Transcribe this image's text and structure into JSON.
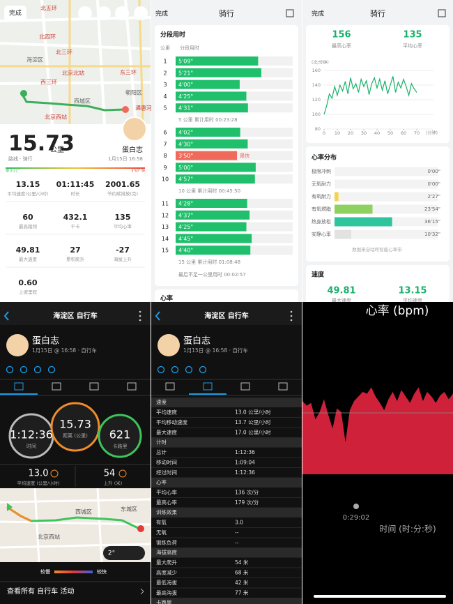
{
  "screen1": {
    "done": "完成",
    "map_labels": [
      "北五环",
      "北四环",
      "北三环",
      "海淀区",
      "北京北站",
      "西三环",
      "东三环",
      "朝阳区",
      "西城区",
      "北京西站",
      "通惠河"
    ],
    "distance": "15.73",
    "distance_unit": "公里",
    "user": "蛋白志",
    "activity": "路线 · 骑行",
    "date": "1月15日 16:58",
    "pace_slow": "慢 5'21\"",
    "pace_fast": "3'50\" 快",
    "stats": [
      {
        "value": "13.15",
        "label": "平均速度(公里/小时)"
      },
      {
        "value": "01:11:45",
        "label": "时长"
      },
      {
        "value": "2001.65",
        "label": "节约碳排放(克)"
      },
      {
        "value": "60",
        "label": "最高踏频"
      },
      {
        "value": "432.1",
        "label": "千卡"
      },
      {
        "value": "135",
        "label": "平均心率"
      },
      {
        "value": "49.81",
        "label": "最大速度"
      },
      {
        "value": "27",
        "label": "累积爬升"
      },
      {
        "value": "-27",
        "label": "海拔上升"
      },
      {
        "value": "0.60",
        "label": "上坡里程"
      }
    ]
  },
  "screen2": {
    "done": "完成",
    "title": "骑行",
    "splits": {
      "title": "分段用时",
      "col_km": "公里",
      "col_time": "分段用时",
      "km": [
        1,
        2,
        3,
        4,
        5,
        6,
        7,
        8,
        9,
        10,
        11,
        12,
        13,
        14,
        15
      ],
      "values": [
        309,
        321,
        240,
        265,
        271,
        242,
        270,
        230,
        300,
        297,
        268,
        277,
        265,
        285,
        280
      ],
      "value_labels": [
        "5'09\"",
        "5'21\"",
        "4'00\"",
        "4'25\"",
        "4'31\"",
        "4'02\"",
        "4'30\"",
        "3'50\"",
        "5'00\"",
        "4'57\"",
        "4'28\"",
        "4'37\"",
        "4'25\"",
        "4'45\"",
        "4'40\""
      ],
      "color": "#1fbf6c",
      "fastest_color": "#f06a5b",
      "fastest": "最快",
      "subtotals": [
        "5 公里 累计用时 00:23:28",
        "10 公里 累计用时 00:45:50",
        "15 公里 累计用时 01:08:48"
      ],
      "last": "最后不足一公里用时 00:02:57"
    },
    "next": "心率"
  },
  "screen3": {
    "done": "完成",
    "title": "骑行",
    "max_hr": "156",
    "max_hr_label": "最高心率",
    "avg_hr": "135",
    "avg_hr_label": "平均心率",
    "chart": {
      "type": "line",
      "y_label": "(次/分钟)",
      "x_label": "(分钟)",
      "x": [
        0,
        2,
        4,
        6,
        8,
        10,
        12,
        14,
        16,
        18,
        20,
        22,
        24,
        26,
        28,
        30,
        32,
        34,
        36,
        38,
        40,
        42,
        44,
        46,
        48,
        50,
        52,
        54,
        56,
        58,
        60,
        62,
        64,
        66,
        68,
        70
      ],
      "values": [
        100,
        112,
        128,
        122,
        138,
        126,
        140,
        132,
        145,
        128,
        150,
        135,
        142,
        130,
        148,
        138,
        146,
        127,
        142,
        150,
        136,
        148,
        133,
        146,
        128,
        140,
        152,
        130,
        144,
        136,
        148,
        138,
        126,
        142,
        135,
        130
      ],
      "color": "#17b26a",
      "xlim": [
        0,
        70
      ],
      "ylim": [
        80,
        160
      ],
      "xticks": [
        0,
        10,
        20,
        30,
        40,
        50,
        60,
        70
      ],
      "yticks": [
        80,
        100,
        120,
        140,
        160
      ],
      "grid": true
    },
    "zones": {
      "title": "心率分布",
      "names": [
        "极限冲刺",
        "无氧耐力",
        "有氧耐力",
        "有氧燃脂",
        "热身放松",
        "安静心率"
      ],
      "values": [
        0,
        0,
        147,
        1434,
        2175,
        632
      ],
      "value_labels": [
        "0'00\"",
        "0'00\"",
        "2'27\"",
        "23'54\"",
        "36'15\"",
        "10'32\""
      ],
      "colors": [
        "#e85b4f",
        "#f29c38",
        "#f5d24c",
        "#8ed160",
        "#2ec49c",
        "#e2e2e2"
      ],
      "note": "数据来自咕咚智能心率带"
    },
    "speed_title": "速度",
    "max_speed": "49.81",
    "max_speed_label": "最大速度",
    "avg_speed": "13.15",
    "avg_speed_label": "平均速度"
  },
  "screen4": {
    "header": "海淀区 自行车",
    "user": "蛋白志",
    "meta": "1月15日 @ 16:58 · 自行车",
    "time": "1:12:36",
    "time_label": "时间",
    "distance": "15.73",
    "distance_label": "距离 (公里)",
    "calories": "621",
    "calories_label": "卡路里",
    "avg_speed": "13.0",
    "avg_speed_label": "平均速度 (公里/小时)",
    "ascent": "54",
    "ascent_label": "上升 (米)",
    "map_labels": [
      "西城区",
      "东城区",
      "北京西站"
    ],
    "temp": "2°",
    "slow": "较慢",
    "fast": "较快",
    "link": "查看所有 自行车 活动"
  },
  "screen5": {
    "header": "海淀区 自行车",
    "user": "蛋白志",
    "meta": "1月15日 @ 16:58 · 自行车",
    "sections": [
      {
        "title": "速度",
        "rows": [
          [
            "平均速度",
            "13.0 公里/小时"
          ],
          [
            "平均移动速度",
            "13.7 公里/小时"
          ],
          [
            "最大速度",
            "17.0 公里/小时"
          ]
        ]
      },
      {
        "title": "计时",
        "rows": [
          [
            "总计",
            "1:12:36"
          ],
          [
            "移动时间",
            "1:09:04"
          ],
          [
            "经过时间",
            "1:12:36"
          ]
        ]
      },
      {
        "title": "心率",
        "rows": [
          [
            "平均心率",
            "136 次/分"
          ],
          [
            "最高心率",
            "179 次/分"
          ]
        ]
      },
      {
        "title": "训练效果",
        "rows": [
          [
            "有氧",
            "3.0"
          ],
          [
            "无氧",
            "--"
          ],
          [
            "锻炼负荷",
            "--"
          ]
        ]
      },
      {
        "title": "海拔高度",
        "rows": [
          [
            "最大爬升",
            "54 米"
          ],
          [
            "高度减少",
            "68 米"
          ],
          [
            "最低海拔",
            "42 米"
          ],
          [
            "最高海拔",
            "77 米"
          ]
        ]
      },
      {
        "title": "卡路里",
        "rows": []
      }
    ]
  },
  "screen6": {
    "chart": {
      "type": "area",
      "title": "心率 (bpm)",
      "values": [
        140,
        135,
        138,
        120,
        128,
        142,
        125,
        110,
        132,
        128,
        95,
        130,
        140,
        145,
        150,
        148,
        155,
        145,
        138,
        130,
        142,
        150,
        140,
        152,
        145,
        138,
        148,
        155,
        140,
        150,
        145,
        138,
        146,
        150,
        142,
        148
      ],
      "ylim": [
        60,
        220
      ],
      "color": "#d0213a",
      "marker": "0:29:02",
      "x_label": "时间 (时:分:秒)"
    }
  }
}
